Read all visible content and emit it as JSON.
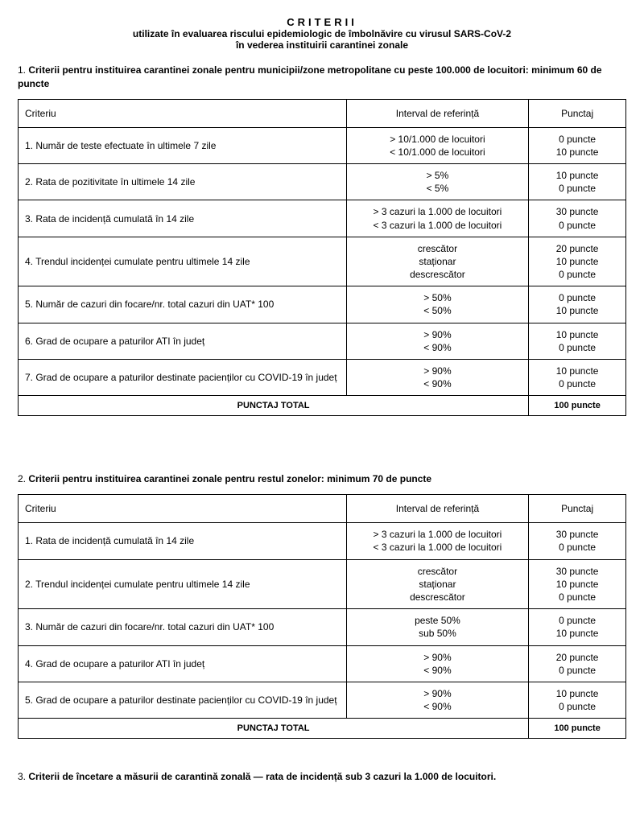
{
  "title": {
    "main": "CRITERII",
    "line1": "utilizate în evaluarea riscului epidemiologic de îmbolnăvire cu virusul SARS-CoV-2",
    "line2": "în vederea instituirii carantinei zonale"
  },
  "columns": {
    "c1": "Criteriu",
    "c2": "Interval de referință",
    "c3": "Punctaj"
  },
  "section1": {
    "num": "1. ",
    "heading": "Criterii pentru instituirea carantinei zonale pentru municipii/zone metropolitane cu peste 100.000 de locuitori: minimum 60 de puncte",
    "rows": [
      {
        "crit": "1. Număr de teste efectuate în ultimele 7 zile",
        "interval": "> 10/1.000 de locuitori\n< 10/1.000 de locuitori",
        "pts": "0 puncte\n10 puncte"
      },
      {
        "crit": "2. Rata de pozitivitate în ultimele 14 zile",
        "interval": "> 5%\n< 5%",
        "pts": "10 puncte\n0 puncte"
      },
      {
        "crit": "3. Rata de incidență cumulată în 14 zile",
        "interval": "> 3 cazuri la 1.000 de locuitori\n< 3 cazuri la 1.000 de locuitori",
        "pts": "30 puncte\n0 puncte"
      },
      {
        "crit": "4. Trendul incidenței cumulate pentru ultimele 14 zile",
        "interval": "crescător\nstaționar\ndescrescător",
        "pts": "20 puncte\n10 puncte\n0 puncte"
      },
      {
        "crit": "5. Număr de cazuri din focare/nr. total cazuri din UAT* 100",
        "interval": "> 50%\n< 50%",
        "pts": "0 puncte\n10 puncte"
      },
      {
        "crit": "6. Grad de ocupare a paturilor ATI în județ",
        "interval": "> 90%\n< 90%",
        "pts": "10 puncte\n0 puncte"
      },
      {
        "crit": "7. Grad de ocupare a paturilor destinate pacienților cu COVID-19 în județ",
        "interval": "> 90%\n< 90%",
        "pts": "10 puncte\n0 puncte"
      }
    ],
    "total_label": "PUNCTAJ TOTAL",
    "total_value": "100 puncte"
  },
  "section2": {
    "num": "2. ",
    "heading": "Criterii pentru instituirea carantinei zonale pentru restul zonelor: minimum 70 de puncte",
    "rows": [
      {
        "crit": "1. Rata de incidență cumulată în 14 zile",
        "interval": "> 3 cazuri la 1.000 de locuitori\n< 3 cazuri la 1.000 de locuitori",
        "pts": "30 puncte\n0 puncte"
      },
      {
        "crit": "2. Trendul incidenței cumulate pentru ultimele 14 zile",
        "interval": "crescător\nstaționar\ndescrescător",
        "pts": "30 puncte\n10 puncte\n0 puncte"
      },
      {
        "crit": "3. Număr de cazuri din focare/nr. total cazuri din UAT* 100",
        "interval": "peste 50%\nsub 50%",
        "pts": "0 puncte\n10 puncte"
      },
      {
        "crit": "4. Grad de ocupare a paturilor ATI în județ",
        "interval": "> 90%\n< 90%",
        "pts": "20 puncte\n0 puncte"
      },
      {
        "crit": "5. Grad de ocupare a paturilor destinate pacienților cu COVID-19 în județ",
        "interval": "> 90%\n< 90%",
        "pts": "10 puncte\n0 puncte"
      }
    ],
    "total_label": "PUNCTAJ TOTAL",
    "total_value": "100 puncte"
  },
  "section3": {
    "num": "3. ",
    "text": "Criterii de încetare a măsurii de carantină zonală — rata de incidență sub 3 cazuri la 1.000 de locuitori."
  },
  "style": {
    "text_color": "#000000",
    "background_color": "#ffffff",
    "border_color": "#000000",
    "base_font_size_pt": 9,
    "col_widths_pct": [
      54,
      30,
      16
    ]
  }
}
